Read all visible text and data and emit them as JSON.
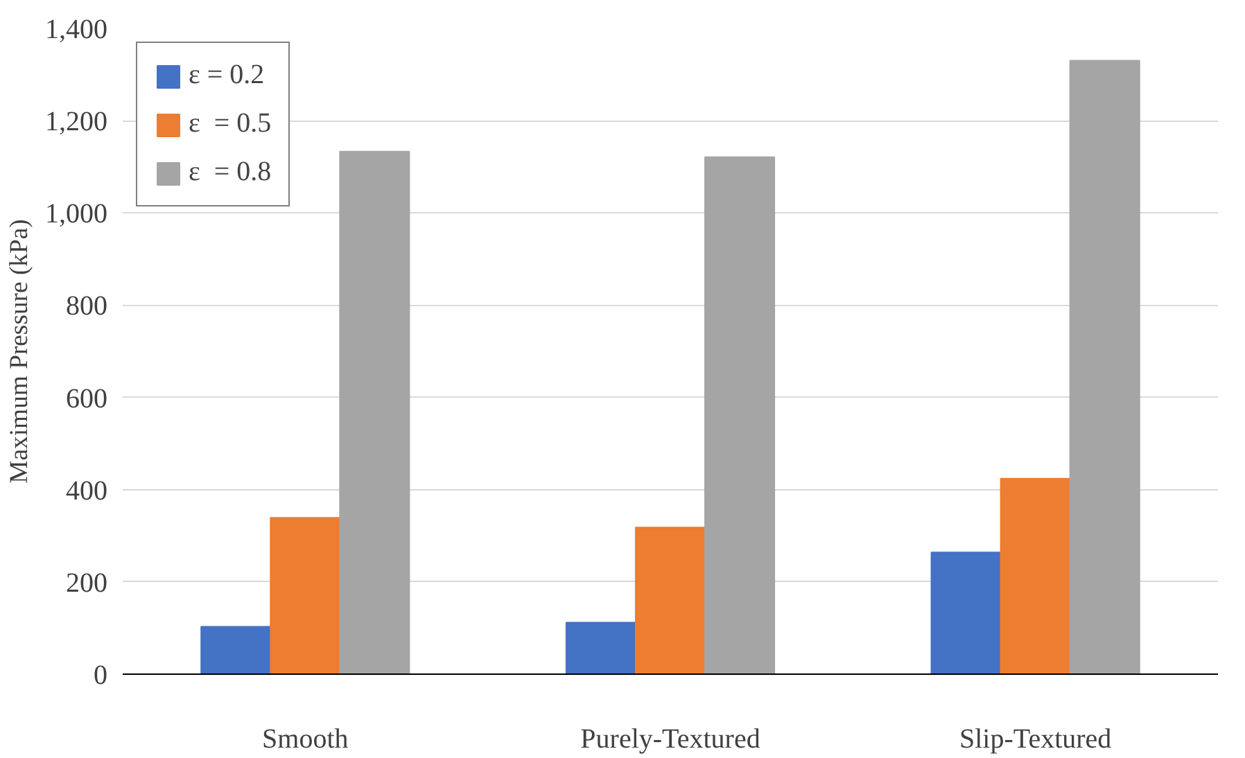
{
  "chart_data": {
    "type": "bar",
    "ylabel": "Maximum Pressure (kPa)",
    "categories": [
      "Smooth",
      "Purely-Textured",
      "Slip-Textured"
    ],
    "series": [
      {
        "name": "ε = 0.2",
        "color": "#4472c4",
        "values": [
          103,
          112,
          264
        ]
      },
      {
        "name": "ε  = 0.5",
        "color": "#ed7d31",
        "values": [
          339,
          318,
          424
        ]
      },
      {
        "name": "ε  = 0.8",
        "color": "#a5a5a5",
        "values": [
          1133,
          1121,
          1330
        ]
      }
    ],
    "ylim": [
      0,
      1400
    ],
    "yticks": [
      {
        "value": 0,
        "label": "0"
      },
      {
        "value": 200,
        "label": "200"
      },
      {
        "value": 400,
        "label": "400"
      },
      {
        "value": 600,
        "label": "600"
      },
      {
        "value": 800,
        "label": "800"
      },
      {
        "value": 1000,
        "label": "1,000"
      },
      {
        "value": 1200,
        "label": "1,200"
      },
      {
        "value": 1400,
        "label": "1,400"
      }
    ],
    "grid": "y",
    "legend": "top left"
  }
}
